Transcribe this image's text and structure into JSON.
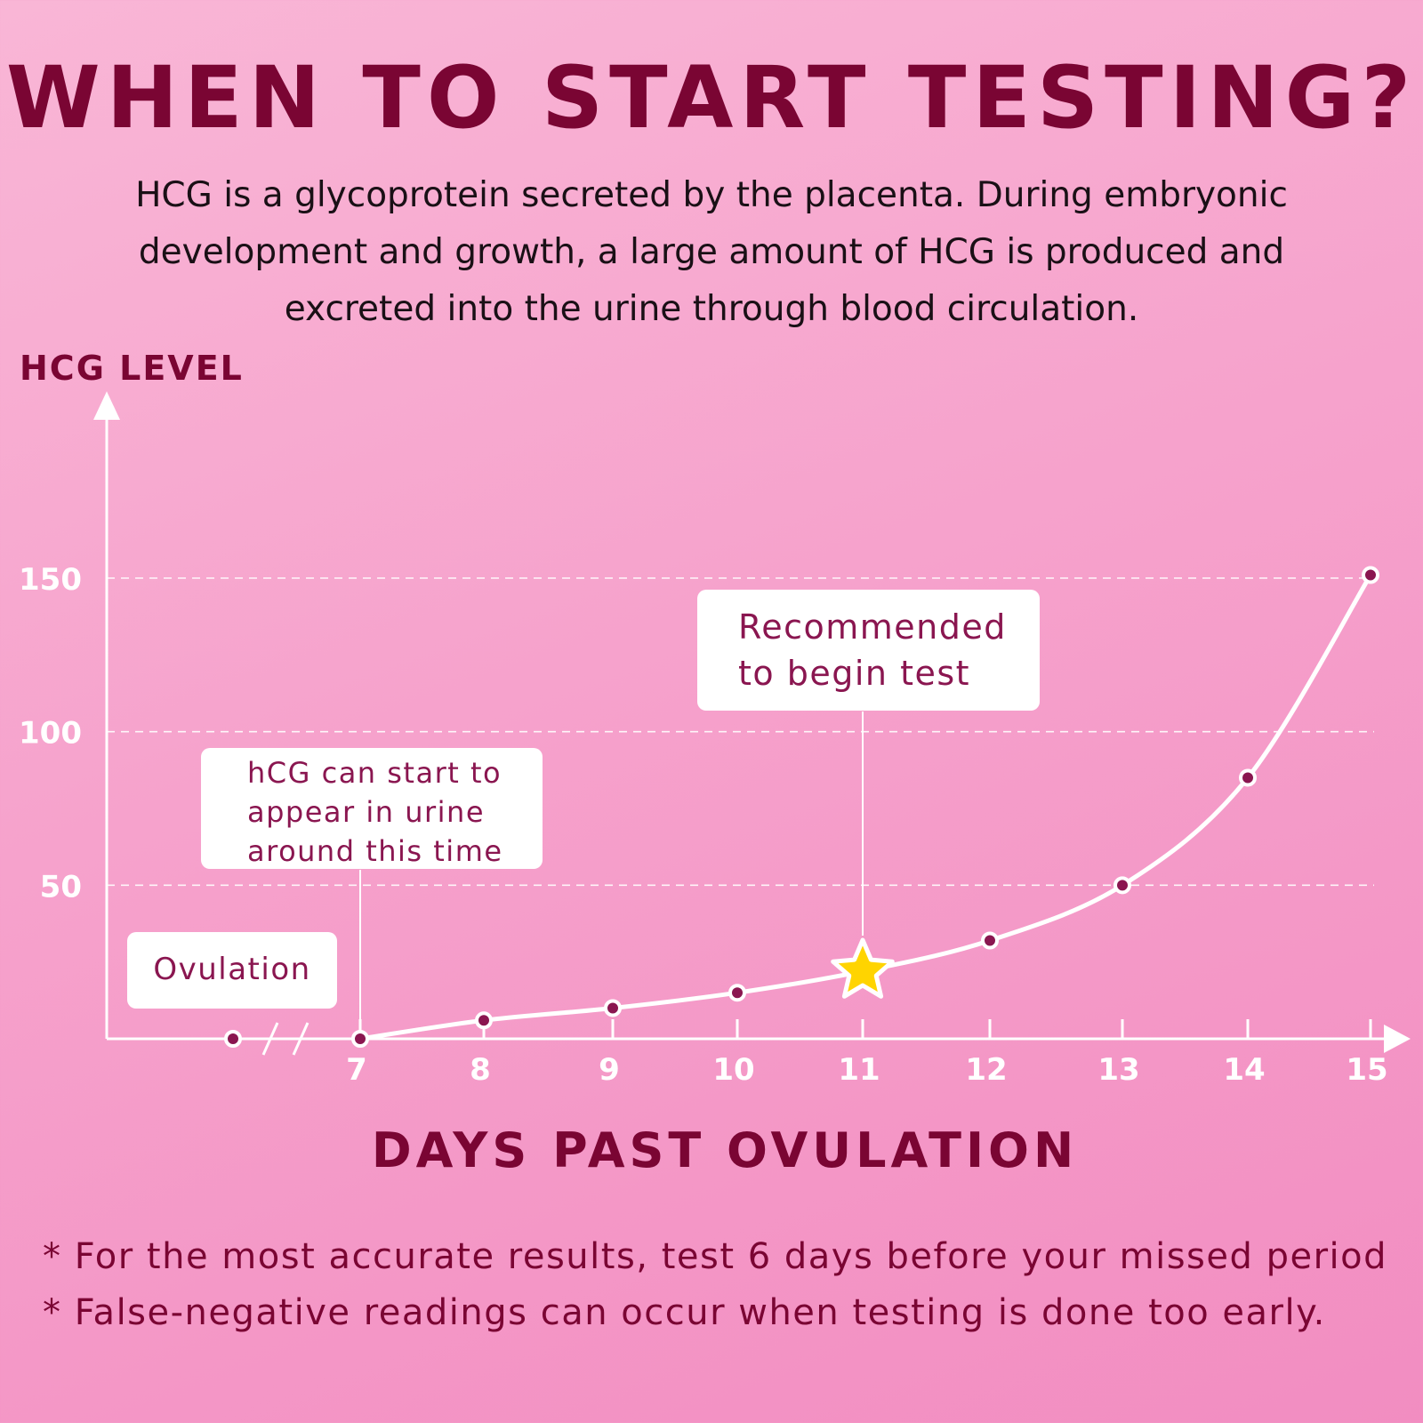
{
  "header": {
    "title": "WHEN TO START TESTING?",
    "intro": [
      "HCG is a glycoprotein secreted by the placenta. During embryonic",
      "development and growth, a large amount of HCG is produced and",
      "excreted into the urine through blood circulation."
    ]
  },
  "chart_data": {
    "type": "line",
    "ylabel": "HCG LEVEL",
    "xlabel": "DAYS PAST OVULATION",
    "ylim": [
      0,
      150
    ],
    "yticks": [
      50,
      100,
      150
    ],
    "grid": "horizontal dashed",
    "xticks": [
      "7",
      "8",
      "9",
      "10",
      "11",
      "12",
      "13",
      "14",
      "15"
    ],
    "series": [
      {
        "x": [
          7,
          8,
          9,
          10,
          11,
          12,
          13,
          14,
          15
        ],
        "y": [
          0,
          6,
          10,
          15,
          22,
          32,
          50,
          85,
          151
        ],
        "marked": [
          true,
          true,
          true,
          true,
          false,
          true,
          true,
          true,
          true
        ]
      }
    ],
    "ovulation_marker": "Ovulation",
    "annotations": [
      {
        "x": 7,
        "text": [
          "hCG can start to",
          "appear in urine",
          "around this time"
        ]
      },
      {
        "x": 11,
        "text": [
          "Recommended",
          "to begin test"
        ],
        "marker": "star-icon"
      }
    ],
    "colors": {
      "axis": "#ffffff",
      "line": "#ffffff",
      "dot": "#8a1650",
      "star": "#ffd400",
      "star_outline": "#ffffff",
      "grid": "#ffffff",
      "tick_label": "#ffffff"
    }
  },
  "footer": {
    "notes": [
      "* For the most accurate results,  test 6 days before your missed period",
      "* False-negative readings can occur when testing is done too early."
    ]
  }
}
